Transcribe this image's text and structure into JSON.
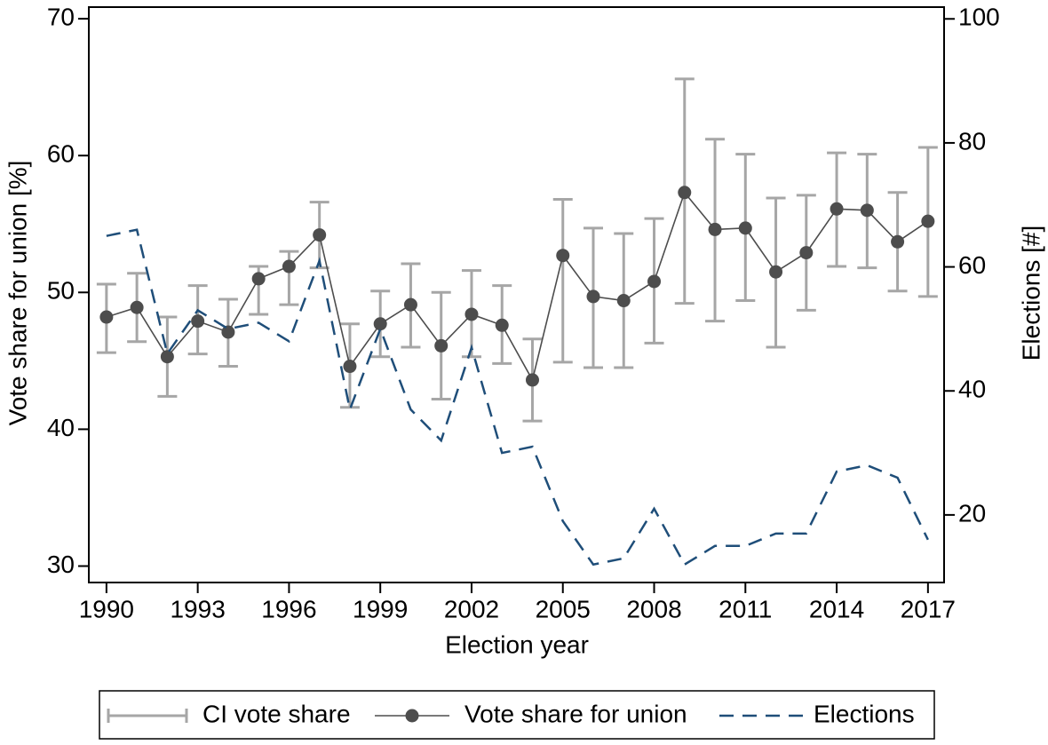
{
  "chart_data": {
    "type": "line",
    "x_label": "Election year",
    "y_label": "Vote share for union [%]",
    "y2_label": "Elections [#]",
    "x": [
      1990,
      1991,
      1992,
      1993,
      1994,
      1995,
      1996,
      1997,
      1998,
      1999,
      2000,
      2001,
      2002,
      2003,
      2004,
      2005,
      2006,
      2007,
      2008,
      2009,
      2010,
      2011,
      2012,
      2013,
      2014,
      2015,
      2016,
      2017
    ],
    "xlim": [
      1989.42,
      2017.53
    ],
    "xticks": [
      1990,
      1993,
      1996,
      1999,
      2002,
      2005,
      2008,
      2011,
      2014,
      2017
    ],
    "ylim": [
      28.8,
      70.85
    ],
    "yticks": [
      30,
      40,
      50,
      60,
      70
    ],
    "y2lim": [
      9.1,
      101.9
    ],
    "y2ticks": [
      20,
      40,
      60,
      80,
      100
    ],
    "grid": false,
    "legend": "bottom",
    "series": [
      {
        "name": "CI vote share",
        "type": "errorbar",
        "color": "#a6a6a6",
        "low": [
          45.6,
          46.4,
          42.4,
          45.5,
          44.6,
          48.4,
          49.1,
          51.8,
          41.6,
          45.3,
          46.0,
          42.2,
          45.3,
          44.8,
          40.6,
          44.9,
          44.5,
          44.5,
          46.3,
          49.2,
          47.9,
          49.4,
          46.0,
          48.7,
          51.9,
          51.8,
          50.1,
          49.7
        ],
        "high": [
          50.6,
          51.4,
          48.2,
          50.5,
          49.5,
          51.9,
          53.0,
          56.6,
          47.7,
          50.1,
          52.1,
          50.0,
          51.6,
          50.5,
          46.6,
          56.8,
          54.7,
          54.3,
          55.4,
          65.6,
          61.2,
          60.1,
          56.9,
          57.1,
          60.2,
          60.1,
          57.3,
          60.6
        ]
      },
      {
        "name": "Vote share for union",
        "type": "line",
        "marker": "circle",
        "color": "#4d4d4d",
        "values": [
          48.2,
          48.9,
          45.3,
          47.9,
          47.1,
          51.0,
          51.9,
          54.2,
          44.6,
          47.7,
          49.1,
          46.1,
          48.4,
          47.6,
          43.6,
          52.7,
          49.7,
          49.4,
          50.8,
          57.3,
          54.6,
          54.7,
          51.5,
          52.9,
          56.1,
          56.0,
          53.7,
          55.2
        ]
      },
      {
        "name": "Elections",
        "type": "line",
        "axis": "y2",
        "line_style": "dashed",
        "color": "#1f4e79",
        "values": [
          65,
          66,
          46,
          53,
          50,
          51,
          48,
          61,
          37,
          50,
          37,
          32,
          47,
          30,
          31,
          19,
          12,
          13,
          21,
          12,
          15,
          15,
          17,
          17,
          27,
          28,
          26,
          16
        ]
      }
    ]
  }
}
